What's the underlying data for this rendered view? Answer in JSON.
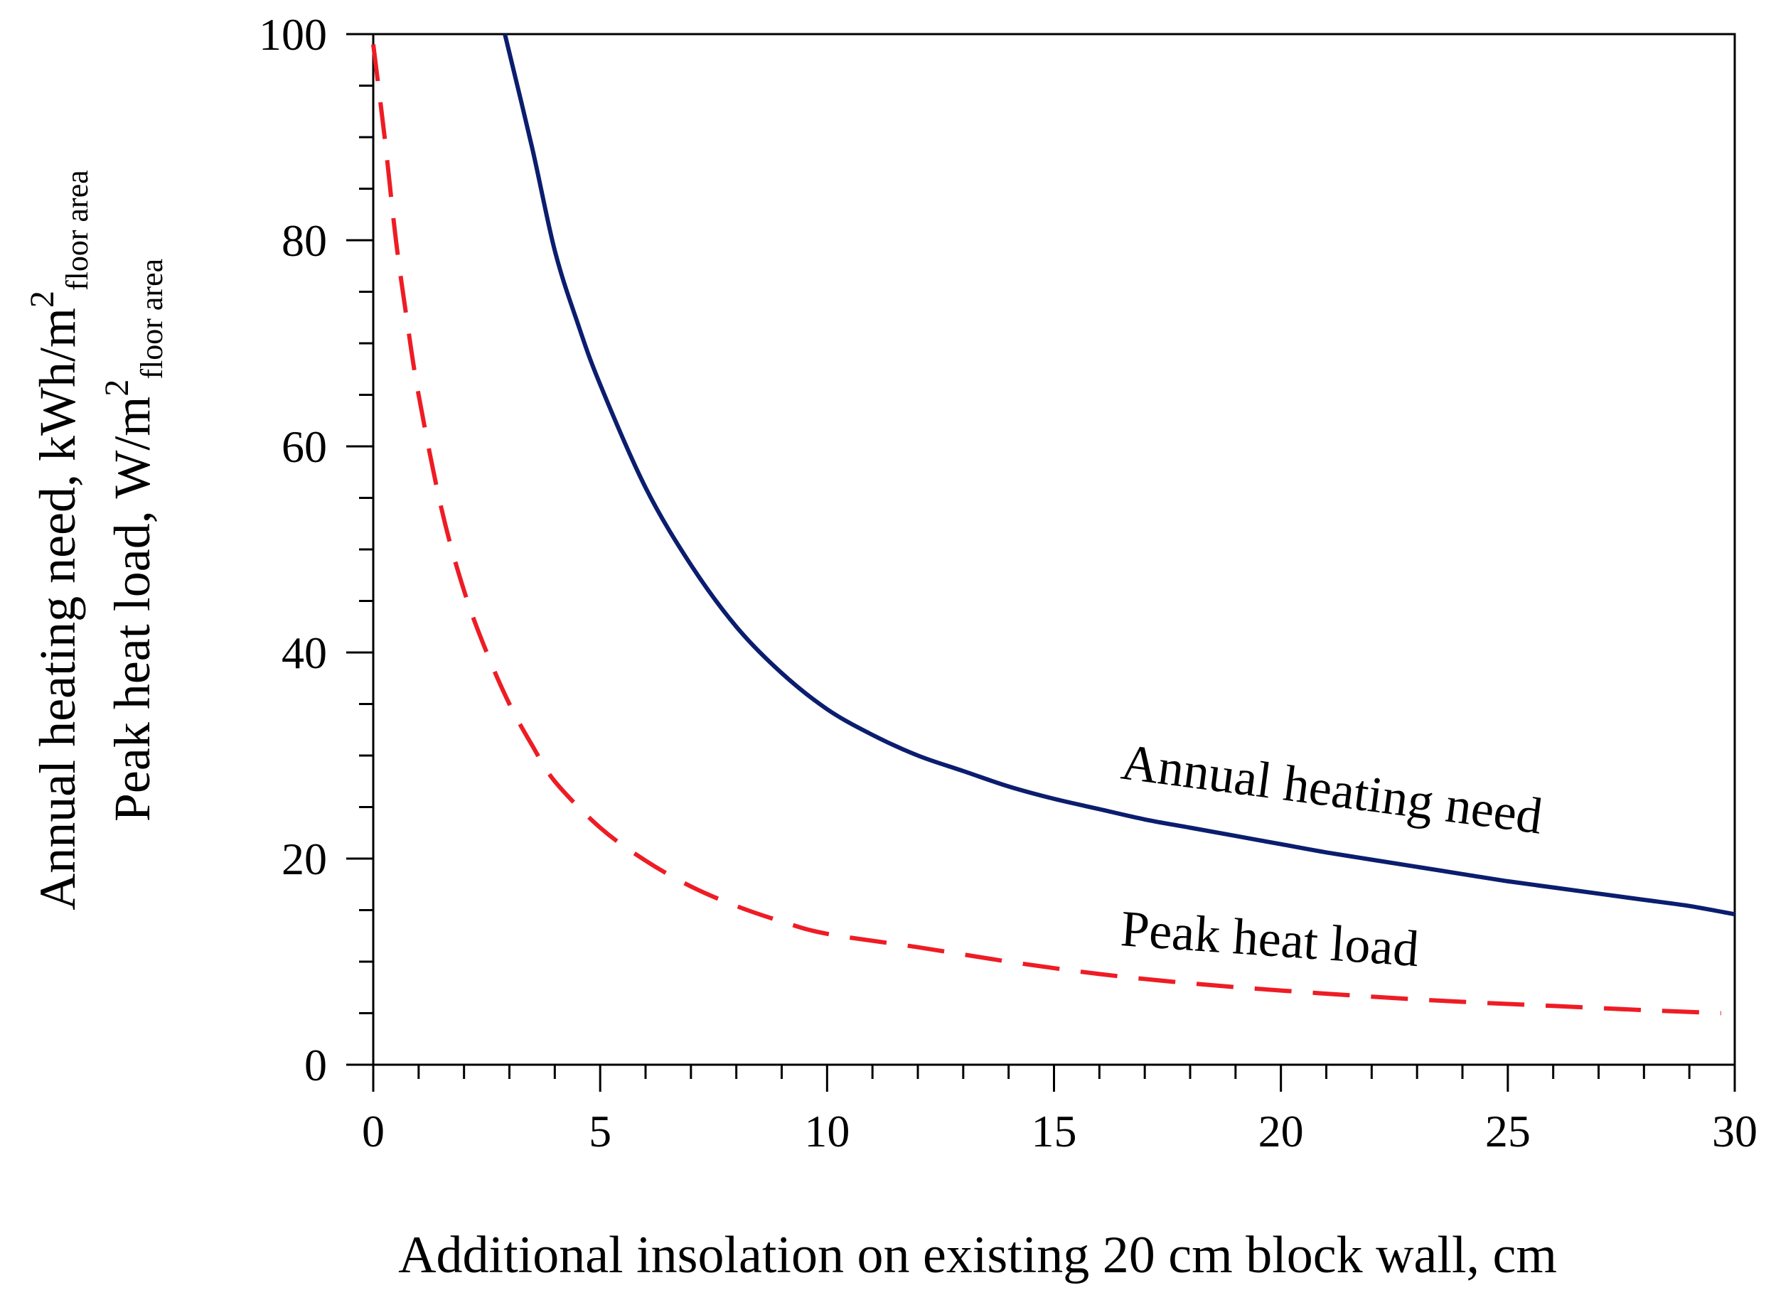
{
  "chart_data": {
    "type": "line",
    "title": "",
    "xlabel": "Additional insolation on existing 20 cm block wall, cm",
    "ylabel": {
      "line1": {
        "text": "Annual heating need, kWh/m",
        "sup": "2",
        "sub": "floor area"
      },
      "line2": {
        "text": "Peak heat load, W/m",
        "sup": "2",
        "sub": "floor area"
      }
    },
    "xlim": [
      0,
      30
    ],
    "ylim": [
      0,
      100
    ],
    "x_major_ticks": [
      0,
      5,
      10,
      15,
      20,
      25,
      30
    ],
    "x_tick_labels": [
      "0",
      "5",
      "10",
      "15",
      "20",
      "25",
      "30"
    ],
    "x_minor_step": 1,
    "y_major_ticks": [
      0,
      20,
      40,
      60,
      80,
      100
    ],
    "y_tick_labels": [
      "0",
      "20",
      "40",
      "60",
      "80",
      "100"
    ],
    "y_minor_step": 5,
    "grid": false,
    "series": [
      {
        "name": "Annual heating need",
        "color": "#0b1d6e",
        "style": "solid",
        "x": [
          2.9,
          3.5,
          4,
          4.5,
          5,
          6,
          7,
          8,
          9,
          10,
          11,
          12,
          13,
          14,
          15,
          16,
          17,
          18,
          19,
          20,
          21,
          22,
          23,
          24,
          25,
          26,
          27,
          28,
          29,
          30
        ],
        "y": [
          100,
          89,
          79,
          72,
          66,
          56,
          48.5,
          42.5,
          38,
          34.5,
          32,
          30,
          28.5,
          27,
          25.8,
          24.8,
          23.8,
          23,
          22.2,
          21.4,
          20.6,
          19.9,
          19.2,
          18.5,
          17.8,
          17.2,
          16.6,
          16,
          15.4,
          14.6
        ]
      },
      {
        "name": "Peak heat load",
        "color": "#ee1c24",
        "style": "dashed",
        "x": [
          0,
          0.25,
          0.5,
          0.75,
          1,
          1.5,
          2,
          2.5,
          3,
          3.5,
          4,
          5,
          6,
          7,
          8,
          9,
          10,
          12,
          14,
          16,
          18,
          20,
          22,
          24,
          26,
          28,
          29.7
        ],
        "y": [
          99,
          90,
          80,
          72,
          65,
          54,
          46,
          40,
          35,
          31,
          27.5,
          23,
          19.8,
          17.3,
          15.4,
          13.9,
          12.7,
          11.4,
          10,
          8.8,
          7.9,
          7.2,
          6.6,
          6.1,
          5.7,
          5.3,
          5.0
        ]
      }
    ],
    "annotations": [
      {
        "text": "Annual heating need",
        "series": "Annual heating need"
      },
      {
        "text": "Peak heat load",
        "series": "Peak heat load"
      }
    ]
  }
}
